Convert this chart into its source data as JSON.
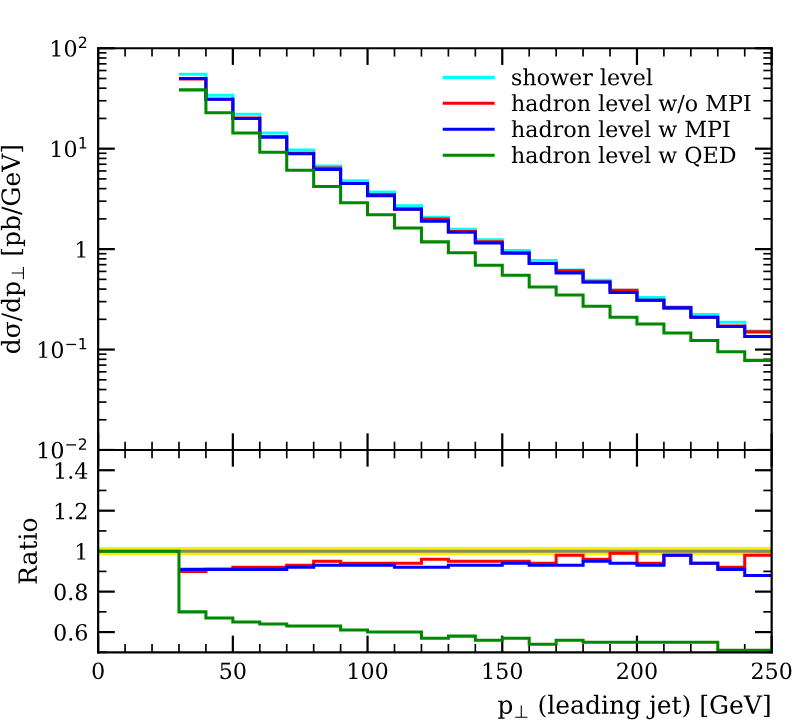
{
  "chart_data": [
    {
      "type": "histogram",
      "ylabel": "dσ/dp$_{⊥}$ [pb/GeV]",
      "log": "y",
      "legend": "top right",
      "tick_labels": "y",
      "bins": [
        30,
        40,
        50,
        60,
        70,
        80,
        90,
        100,
        110,
        120,
        130,
        140,
        150,
        160,
        170,
        180,
        190,
        200,
        210,
        220,
        230,
        240,
        250
      ],
      "xlim": [
        0,
        250
      ],
      "xticks": [
        {
          "value": 0,
          "label": null
        },
        {
          "value": 50,
          "label": null
        },
        {
          "value": 100,
          "label": null
        },
        {
          "value": 150,
          "label": null
        },
        {
          "value": 200,
          "label": null
        },
        {
          "value": 250,
          "label": null
        }
      ],
      "ylim": [
        0.01,
        100
      ],
      "yticks": [
        {
          "value": 0.01,
          "label": "10$^{−2}$"
        },
        {
          "value": 0.1,
          "label": "10$^{−1}$"
        },
        {
          "value": 1,
          "label": "1"
        },
        {
          "value": 10,
          "label": "10$^{1}$"
        },
        {
          "value": 100,
          "label": "10$^{2}$"
        }
      ],
      "series": [
        {
          "name": "shower level",
          "color": "#00ffff",
          "values": [
            55,
            34,
            22,
            14.3,
            9.7,
            6.7,
            4.8,
            3.7,
            2.7,
            2.07,
            1.58,
            1.24,
            0.97,
            0.77,
            0.62,
            0.49,
            0.39,
            0.33,
            0.265,
            0.223,
            0.187,
            0.153
          ]
        },
        {
          "name": "hadron level w/o MPI",
          "color": "#ff0000",
          "values": [
            49.5,
            31,
            20.2,
            13.2,
            9.0,
            6.4,
            4.5,
            3.5,
            2.5,
            1.99,
            1.5,
            1.18,
            0.92,
            0.72,
            0.61,
            0.47,
            0.39,
            0.31,
            0.26,
            0.21,
            0.172,
            0.15
          ]
        },
        {
          "name": "hadron level w MPI",
          "color": "#0000ff",
          "values": [
            50,
            31,
            20,
            13,
            8.9,
            6.2,
            4.5,
            3.4,
            2.5,
            1.9,
            1.47,
            1.15,
            0.91,
            0.72,
            0.58,
            0.47,
            0.37,
            0.31,
            0.26,
            0.21,
            0.17,
            0.135
          ]
        },
        {
          "name": "hadron level w QED",
          "color": "#008800",
          "values": [
            38.5,
            22.8,
            14.3,
            9.2,
            6.1,
            4.2,
            2.9,
            2.2,
            1.62,
            1.18,
            0.92,
            0.69,
            0.55,
            0.42,
            0.35,
            0.27,
            0.21,
            0.18,
            0.146,
            0.123,
            0.095,
            0.078
          ]
        }
      ]
    },
    {
      "type": "histogram",
      "ylabel": "Ratio",
      "xlabel": "p$_{⊥}$ (leading jet) [GeV]",
      "bins": [
        0,
        10,
        20,
        30,
        40,
        50,
        60,
        70,
        80,
        90,
        100,
        110,
        120,
        130,
        140,
        150,
        160,
        170,
        180,
        190,
        200,
        210,
        220,
        230,
        240,
        250
      ],
      "xlim": [
        0,
        250
      ],
      "xticks": [
        0,
        50,
        100,
        150,
        200,
        250
      ],
      "ylim": [
        0.5,
        1.5
      ],
      "yticks": [
        0.6,
        0.8,
        1,
        1.2,
        1.4
      ],
      "bands": [
        {
          "axis": "y",
          "from": 0.98,
          "to": 1.02,
          "color": "#ffee00"
        }
      ],
      "series": [
        {
          "color": "#8a8a60",
          "values": [
            1,
            1,
            1,
            1,
            1,
            1,
            1,
            1,
            1,
            1,
            1,
            1,
            1,
            1,
            1,
            1,
            1,
            1,
            1,
            1,
            1,
            1,
            1,
            1,
            1
          ]
        },
        {
          "color": "#ff0000",
          "bins": [
            30,
            40,
            50,
            60,
            70,
            80,
            90,
            100,
            110,
            120,
            130,
            140,
            150,
            160,
            170,
            180,
            190,
            200,
            210,
            220,
            230,
            240,
            250
          ],
          "values": [
            0.9,
            0.91,
            0.92,
            0.92,
            0.93,
            0.95,
            0.94,
            0.94,
            0.94,
            0.96,
            0.95,
            0.95,
            0.95,
            0.94,
            0.98,
            0.96,
            0.99,
            0.94,
            0.98,
            0.94,
            0.92,
            0.98
          ]
        },
        {
          "color": "#0000ff",
          "bins": [
            30,
            40,
            50,
            60,
            70,
            80,
            90,
            100,
            110,
            120,
            130,
            140,
            150,
            160,
            170,
            180,
            190,
            200,
            210,
            220,
            230,
            240,
            250
          ],
          "values": [
            0.91,
            0.91,
            0.91,
            0.91,
            0.92,
            0.93,
            0.93,
            0.93,
            0.92,
            0.92,
            0.93,
            0.93,
            0.94,
            0.93,
            0.93,
            0.95,
            0.94,
            0.93,
            0.98,
            0.94,
            0.91,
            0.88
          ]
        },
        {
          "color": "#008800",
          "values": [
            1,
            1,
            1,
            0.7,
            0.67,
            0.65,
            0.64,
            0.63,
            0.63,
            0.61,
            0.6,
            0.6,
            0.57,
            0.58,
            0.56,
            0.57,
            0.54,
            0.56,
            0.55,
            0.55,
            0.55,
            0.55,
            0.55,
            0.51,
            0.51
          ]
        }
      ]
    }
  ]
}
